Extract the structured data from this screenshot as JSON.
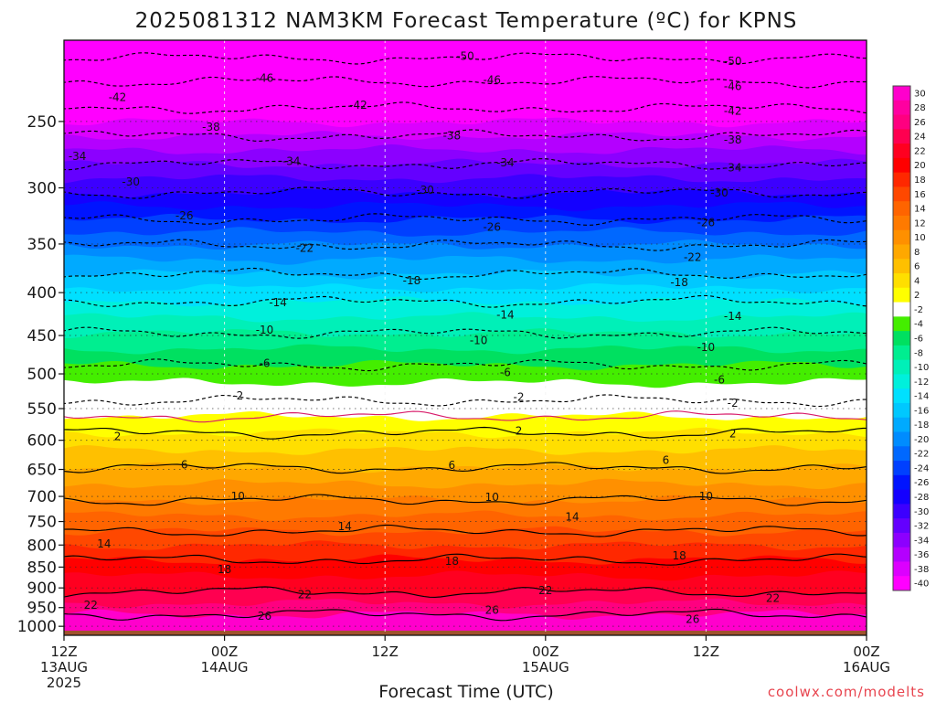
{
  "chart_data": {
    "type": "heatmap",
    "title": "2025081312 NAM3KM Forecast Temperature (ºC) for KPNS",
    "xlabel": "Forecast Time (UTC)",
    "ylabel": "",
    "credit": "coolwx.com/modelts",
    "x_ticks": [
      {
        "hour": 0,
        "l1": "12Z",
        "l2": "13AUG",
        "l3": "2025"
      },
      {
        "hour": 12,
        "l1": "00Z",
        "l2": "14AUG",
        "l3": ""
      },
      {
        "hour": 24,
        "l1": "12Z",
        "l2": "",
        "l3": ""
      },
      {
        "hour": 36,
        "l1": "00Z",
        "l2": "15AUG",
        "l3": ""
      },
      {
        "hour": 48,
        "l1": "12Z",
        "l2": "",
        "l3": ""
      },
      {
        "hour": 60,
        "l1": "00Z",
        "l2": "16AUG",
        "l3": ""
      }
    ],
    "xlim": [
      0,
      60
    ],
    "ylim": [
      1025,
      200
    ],
    "y_scale": "log-pressure",
    "y_ticks": [
      250,
      300,
      350,
      400,
      450,
      500,
      550,
      600,
      650,
      700,
      750,
      800,
      850,
      900,
      950,
      1000
    ],
    "grid": true,
    "colorbar": {
      "labels": [
        "30",
        "28",
        "26",
        "24",
        "22",
        "20",
        "18",
        "16",
        "14",
        "12",
        "10",
        "8",
        "6",
        "4",
        "2",
        "-2",
        "-4",
        "-6",
        "-8",
        "-10",
        "-12",
        "-14",
        "-16",
        "-18",
        "-20",
        "-22",
        "-24",
        "-26",
        "-28",
        "-30",
        "-32",
        "-34",
        "-36",
        "-38",
        "-40"
      ],
      "colors": [
        "#ff00cc",
        "#ff00a0",
        "#ff0080",
        "#ff0050",
        "#ff0020",
        "#ff0000",
        "#ff2800",
        "#ff4800",
        "#ff6400",
        "#ff7a00",
        "#ff9000",
        "#ffa800",
        "#ffc000",
        "#ffdf00",
        "#ffff00",
        "#ffffff",
        "#44ee00",
        "#00e060",
        "#00ee90",
        "#00f0b8",
        "#00f0dc",
        "#00e0ff",
        "#00c8ff",
        "#00aaff",
        "#008cff",
        "#0068ff",
        "#0040ff",
        "#0014ff",
        "#1400ff",
        "#3c00ff",
        "#6400ff",
        "#8c00ff",
        "#b400ff",
        "#dc00ff",
        "#ff00ff"
      ]
    },
    "contour_levels": [
      26,
      22,
      18,
      14,
      10,
      6,
      2,
      0,
      -2,
      -6,
      -10,
      -14,
      -18,
      -22,
      -26,
      -30,
      -34,
      -38,
      -42,
      -46,
      -50
    ],
    "contour_pressure": [
      [
        26,
        968
      ],
      [
        22,
        910
      ],
      [
        18,
        833
      ],
      [
        14,
        770
      ],
      [
        10,
        707
      ],
      [
        6,
        647
      ],
      [
        2,
        588
      ],
      [
        0,
        562
      ],
      [
        -2,
        538
      ],
      [
        -6,
        488
      ],
      [
        -10,
        447
      ],
      [
        -14,
        410
      ],
      [
        -18,
        380
      ],
      [
        -22,
        351
      ],
      [
        -26,
        327
      ],
      [
        -30,
        304
      ],
      [
        -34,
        281
      ],
      [
        -38,
        260
      ],
      [
        -42,
        241
      ],
      [
        -46,
        224
      ],
      [
        -50,
        210
      ]
    ],
    "contour_labels": [
      {
        "v": "26",
        "hour": 15,
        "p": 972
      },
      {
        "v": "26",
        "hour": 32,
        "p": 957
      },
      {
        "v": "26",
        "hour": 47,
        "p": 981
      },
      {
        "v": "22",
        "hour": 2,
        "p": 944
      },
      {
        "v": "22",
        "hour": 18,
        "p": 917
      },
      {
        "v": "22",
        "hour": 36,
        "p": 906
      },
      {
        "v": "22",
        "hour": 53,
        "p": 926
      },
      {
        "v": "18",
        "hour": 12,
        "p": 855
      },
      {
        "v": "18",
        "hour": 29,
        "p": 836
      },
      {
        "v": "18",
        "hour": 46,
        "p": 824
      },
      {
        "v": "14",
        "hour": 3,
        "p": 797
      },
      {
        "v": "14",
        "hour": 21,
        "p": 760
      },
      {
        "v": "14",
        "hour": 38,
        "p": 741
      },
      {
        "v": "10",
        "hour": 13,
        "p": 700
      },
      {
        "v": "10",
        "hour": 32,
        "p": 702
      },
      {
        "v": "10",
        "hour": 48,
        "p": 700
      },
      {
        "v": "6",
        "hour": 9,
        "p": 642
      },
      {
        "v": "6",
        "hour": 29,
        "p": 643
      },
      {
        "v": "6",
        "hour": 45,
        "p": 634
      },
      {
        "v": "2",
        "hour": 4,
        "p": 594
      },
      {
        "v": "2",
        "hour": 34,
        "p": 585
      },
      {
        "v": "2",
        "hour": 50,
        "p": 589
      },
      {
        "v": "-2",
        "hour": 13,
        "p": 531
      },
      {
        "v": "-2",
        "hour": 34,
        "p": 533
      },
      {
        "v": "-2",
        "hour": 50,
        "p": 542
      },
      {
        "v": "-6",
        "hour": 15,
        "p": 486
      },
      {
        "v": "-6",
        "hour": 33,
        "p": 498
      },
      {
        "v": "-6",
        "hour": 49,
        "p": 508
      },
      {
        "v": "-10",
        "hour": 15,
        "p": 443
      },
      {
        "v": "-10",
        "hour": 31,
        "p": 456
      },
      {
        "v": "-10",
        "hour": 48,
        "p": 465
      },
      {
        "v": "-14",
        "hour": 16,
        "p": 411
      },
      {
        "v": "-14",
        "hour": 33,
        "p": 425
      },
      {
        "v": "-14",
        "hour": 50,
        "p": 427
      },
      {
        "v": "-18",
        "hour": 26,
        "p": 387
      },
      {
        "v": "-18",
        "hour": 46,
        "p": 389
      },
      {
        "v": "-22",
        "hour": 18,
        "p": 354
      },
      {
        "v": "-22",
        "hour": 47,
        "p": 363
      },
      {
        "v": "-26",
        "hour": 9,
        "p": 324
      },
      {
        "v": "-26",
        "hour": 32,
        "p": 334
      },
      {
        "v": "-26",
        "hour": 48,
        "p": 330
      },
      {
        "v": "-30",
        "hour": 5,
        "p": 295
      },
      {
        "v": "-30",
        "hour": 27,
        "p": 302
      },
      {
        "v": "-30",
        "hour": 49,
        "p": 304
      },
      {
        "v": "-34",
        "hour": 1,
        "p": 275
      },
      {
        "v": "-34",
        "hour": 17,
        "p": 279
      },
      {
        "v": "-34",
        "hour": 33,
        "p": 280
      },
      {
        "v": "-34",
        "hour": 50,
        "p": 284
      },
      {
        "v": "-38",
        "hour": 11,
        "p": 254
      },
      {
        "v": "-38",
        "hour": 29,
        "p": 260
      },
      {
        "v": "-38",
        "hour": 50,
        "p": 263
      },
      {
        "v": "-42",
        "hour": 4,
        "p": 234
      },
      {
        "v": "-42",
        "hour": 22,
        "p": 239
      },
      {
        "v": "-42",
        "hour": 50,
        "p": 243
      },
      {
        "v": "-46",
        "hour": 15,
        "p": 222
      },
      {
        "v": "-46",
        "hour": 32,
        "p": 223
      },
      {
        "v": "-46",
        "hour": 50,
        "p": 227
      },
      {
        "v": "-50",
        "hour": 30,
        "p": 209
      },
      {
        "v": "-50",
        "hour": 50,
        "p": 212
      }
    ],
    "ground": {
      "pressure": 1012,
      "color": "#a0522d"
    }
  }
}
